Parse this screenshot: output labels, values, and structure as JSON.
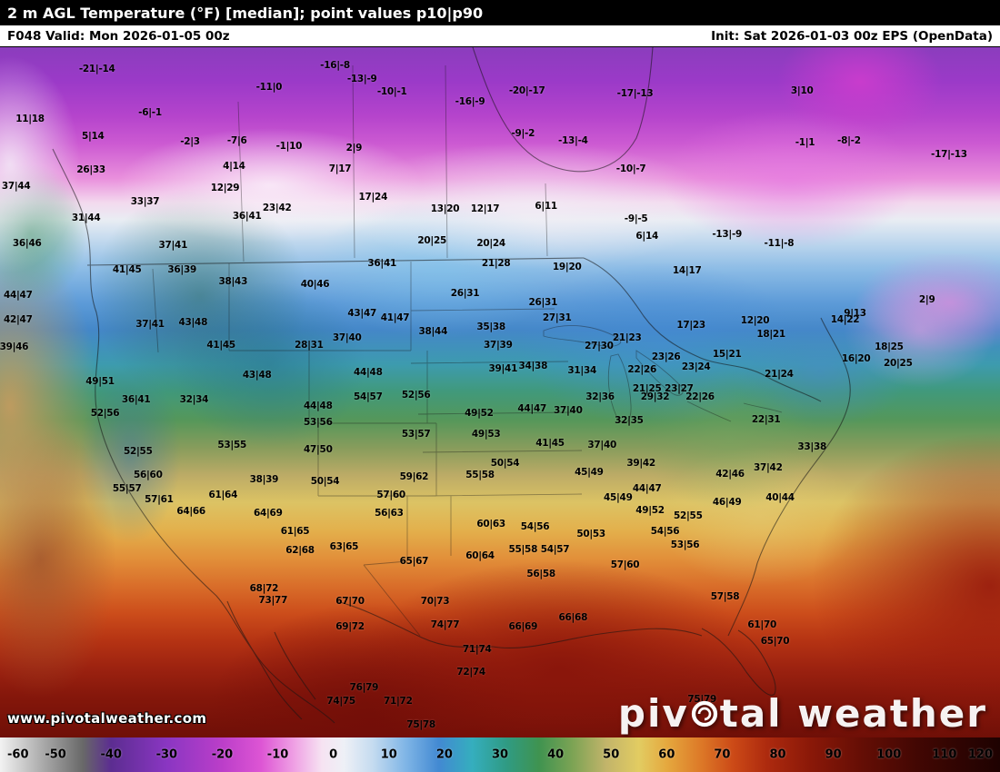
{
  "header": {
    "title": "2 m AGL Temperature (°F) [median]; point values p10|p90",
    "valid_label": "F048 Valid: Mon 2026-01-05 00z",
    "init_label": "Init: Sat 2026-01-03 00z EPS (OpenData)"
  },
  "map": {
    "watermark": "www.pivotalweather.com",
    "logo": {
      "pre": "piv",
      "post": "tal weather"
    },
    "point_values": [
      {
        "v": "-21|-14",
        "x": 9.7,
        "y": 3.2
      },
      {
        "v": "-16|-8",
        "x": 33.5,
        "y": 2.6
      },
      {
        "v": "-13|-9",
        "x": 36.2,
        "y": 4.6
      },
      {
        "v": "-11|0",
        "x": 26.9,
        "y": 5.8
      },
      {
        "v": "-10|-1",
        "x": 39.2,
        "y": 6.4
      },
      {
        "v": "-16|-9",
        "x": 47.0,
        "y": 7.9
      },
      {
        "v": "-20|-17",
        "x": 52.7,
        "y": 6.3
      },
      {
        "v": "-17|-13",
        "x": 63.5,
        "y": 6.7
      },
      {
        "v": "3|10",
        "x": 80.2,
        "y": 6.3
      },
      {
        "v": "11|18",
        "x": 3.0,
        "y": 10.4
      },
      {
        "v": "-6|-1",
        "x": 15.0,
        "y": 9.5
      },
      {
        "v": "5|14",
        "x": 9.3,
        "y": 12.9
      },
      {
        "v": "-2|3",
        "x": 19.0,
        "y": 13.7
      },
      {
        "v": "-7|6",
        "x": 23.7,
        "y": 13.6
      },
      {
        "v": "-1|10",
        "x": 28.9,
        "y": 14.3
      },
      {
        "v": "2|9",
        "x": 35.4,
        "y": 14.6
      },
      {
        "v": "-9|-2",
        "x": 52.3,
        "y": 12.5
      },
      {
        "v": "-13|-4",
        "x": 57.3,
        "y": 13.6
      },
      {
        "v": "-1|1",
        "x": 80.5,
        "y": 13.8
      },
      {
        "v": "-8|-2",
        "x": 84.9,
        "y": 13.6
      },
      {
        "v": "-17|-13",
        "x": 94.9,
        "y": 15.5
      },
      {
        "v": "26|33",
        "x": 9.1,
        "y": 17.8
      },
      {
        "v": "4|14",
        "x": 23.4,
        "y": 17.2
      },
      {
        "v": "7|17",
        "x": 34.0,
        "y": 17.6
      },
      {
        "v": "-10|-7",
        "x": 63.1,
        "y": 17.6
      },
      {
        "v": "37|44",
        "x": 1.6,
        "y": 20.1
      },
      {
        "v": "12|29",
        "x": 22.5,
        "y": 20.4
      },
      {
        "v": "33|37",
        "x": 14.5,
        "y": 22.4
      },
      {
        "v": "17|24",
        "x": 37.3,
        "y": 21.7
      },
      {
        "v": "36|41",
        "x": 24.7,
        "y": 24.5
      },
      {
        "v": "23|42",
        "x": 27.7,
        "y": 23.3
      },
      {
        "v": "13|20",
        "x": 44.5,
        "y": 23.4
      },
      {
        "v": "12|17",
        "x": 48.5,
        "y": 23.4
      },
      {
        "v": "6|11",
        "x": 54.6,
        "y": 23.0
      },
      {
        "v": "-9|-5",
        "x": 63.6,
        "y": 24.9
      },
      {
        "v": "31|44",
        "x": 8.6,
        "y": 24.7
      },
      {
        "v": "6|14",
        "x": 64.7,
        "y": 27.4
      },
      {
        "v": "-13|-9",
        "x": 72.7,
        "y": 27.1
      },
      {
        "v": "-11|-8",
        "x": 77.9,
        "y": 28.4
      },
      {
        "v": "36|46",
        "x": 2.7,
        "y": 28.4
      },
      {
        "v": "37|41",
        "x": 17.3,
        "y": 28.7
      },
      {
        "v": "20|25",
        "x": 43.2,
        "y": 28.0
      },
      {
        "v": "20|24",
        "x": 49.1,
        "y": 28.4
      },
      {
        "v": "21|28",
        "x": 49.6,
        "y": 31.3
      },
      {
        "v": "19|20",
        "x": 56.7,
        "y": 31.8
      },
      {
        "v": "36|41",
        "x": 38.2,
        "y": 31.3
      },
      {
        "v": "41|45",
        "x": 12.7,
        "y": 32.2
      },
      {
        "v": "36|39",
        "x": 18.2,
        "y": 32.2
      },
      {
        "v": "14|17",
        "x": 68.7,
        "y": 32.4
      },
      {
        "v": "38|43",
        "x": 23.3,
        "y": 33.9
      },
      {
        "v": "40|46",
        "x": 31.5,
        "y": 34.3
      },
      {
        "v": "44|47",
        "x": 1.8,
        "y": 35.9
      },
      {
        "v": "26|31",
        "x": 46.5,
        "y": 35.7
      },
      {
        "v": "2|9",
        "x": 92.7,
        "y": 36.6
      },
      {
        "v": "9|13",
        "x": 85.5,
        "y": 38.6
      },
      {
        "v": "26|31",
        "x": 54.3,
        "y": 37.0
      },
      {
        "v": "27|31",
        "x": 55.7,
        "y": 39.2
      },
      {
        "v": "12|20",
        "x": 75.5,
        "y": 39.6
      },
      {
        "v": "14|22",
        "x": 84.5,
        "y": 39.5
      },
      {
        "v": "17|23",
        "x": 69.1,
        "y": 40.3
      },
      {
        "v": "18|25",
        "x": 88.9,
        "y": 43.4
      },
      {
        "v": "18|21",
        "x": 77.1,
        "y": 41.6
      },
      {
        "v": "42|47",
        "x": 1.8,
        "y": 39.5
      },
      {
        "v": "43|48",
        "x": 19.3,
        "y": 39.9
      },
      {
        "v": "37|41",
        "x": 15.0,
        "y": 40.1
      },
      {
        "v": "43|47",
        "x": 36.2,
        "y": 38.6
      },
      {
        "v": "41|47",
        "x": 39.5,
        "y": 39.2
      },
      {
        "v": "35|38",
        "x": 49.1,
        "y": 40.5
      },
      {
        "v": "39|46",
        "x": 1.4,
        "y": 43.4
      },
      {
        "v": "28|31",
        "x": 30.9,
        "y": 43.2
      },
      {
        "v": "37|40",
        "x": 34.7,
        "y": 42.1
      },
      {
        "v": "41|45",
        "x": 22.1,
        "y": 43.2
      },
      {
        "v": "38|44",
        "x": 43.3,
        "y": 41.2
      },
      {
        "v": "37|39",
        "x": 49.8,
        "y": 43.2
      },
      {
        "v": "27|30",
        "x": 59.9,
        "y": 43.3
      },
      {
        "v": "23|26",
        "x": 66.6,
        "y": 44.9
      },
      {
        "v": "21|23",
        "x": 62.7,
        "y": 42.1
      },
      {
        "v": "39|41",
        "x": 50.3,
        "y": 46.6
      },
      {
        "v": "34|38",
        "x": 53.3,
        "y": 46.2
      },
      {
        "v": "31|34",
        "x": 58.2,
        "y": 46.8
      },
      {
        "v": "22|26",
        "x": 64.2,
        "y": 46.7
      },
      {
        "v": "23|24",
        "x": 69.6,
        "y": 46.3
      },
      {
        "v": "20|25",
        "x": 89.8,
        "y": 45.8
      },
      {
        "v": "16|20",
        "x": 85.6,
        "y": 45.1
      },
      {
        "v": "15|21",
        "x": 72.7,
        "y": 44.5
      },
      {
        "v": "44|48",
        "x": 36.8,
        "y": 47.1
      },
      {
        "v": "43|48",
        "x": 25.7,
        "y": 47.5
      },
      {
        "v": "49|51",
        "x": 10.0,
        "y": 48.4
      },
      {
        "v": "21|25",
        "x": 64.7,
        "y": 49.5
      },
      {
        "v": "23|27",
        "x": 67.9,
        "y": 49.5
      },
      {
        "v": "21|24",
        "x": 77.9,
        "y": 47.4
      },
      {
        "v": "36|41",
        "x": 13.6,
        "y": 51.1
      },
      {
        "v": "32|34",
        "x": 19.4,
        "y": 51.1
      },
      {
        "v": "44|48",
        "x": 31.8,
        "y": 52.0
      },
      {
        "v": "54|57",
        "x": 36.8,
        "y": 50.7
      },
      {
        "v": "52|56",
        "x": 41.6,
        "y": 50.4
      },
      {
        "v": "49|52",
        "x": 47.9,
        "y": 53.0
      },
      {
        "v": "44|47",
        "x": 53.2,
        "y": 52.4
      },
      {
        "v": "37|40",
        "x": 56.8,
        "y": 52.6
      },
      {
        "v": "32|36",
        "x": 60.0,
        "y": 50.7
      },
      {
        "v": "29|32",
        "x": 65.5,
        "y": 50.7
      },
      {
        "v": "22|26",
        "x": 70.0,
        "y": 50.7
      },
      {
        "v": "52|56",
        "x": 10.5,
        "y": 53.0
      },
      {
        "v": "53|56",
        "x": 31.8,
        "y": 54.3
      },
      {
        "v": "53|57",
        "x": 41.6,
        "y": 56.1
      },
      {
        "v": "49|53",
        "x": 48.6,
        "y": 56.1
      },
      {
        "v": "32|35",
        "x": 62.9,
        "y": 54.1
      },
      {
        "v": "22|31",
        "x": 76.6,
        "y": 53.9
      },
      {
        "v": "53|55",
        "x": 23.2,
        "y": 57.6
      },
      {
        "v": "47|50",
        "x": 31.8,
        "y": 58.3
      },
      {
        "v": "41|45",
        "x": 55.0,
        "y": 57.4
      },
      {
        "v": "37|40",
        "x": 60.2,
        "y": 57.6
      },
      {
        "v": "33|38",
        "x": 81.2,
        "y": 57.9
      },
      {
        "v": "52|55",
        "x": 13.8,
        "y": 58.6
      },
      {
        "v": "39|42",
        "x": 64.1,
        "y": 60.3
      },
      {
        "v": "42|46",
        "x": 73.0,
        "y": 61.8
      },
      {
        "v": "37|42",
        "x": 76.8,
        "y": 60.9
      },
      {
        "v": "50|54",
        "x": 50.5,
        "y": 60.3
      },
      {
        "v": "45|49",
        "x": 58.9,
        "y": 61.6
      },
      {
        "v": "56|60",
        "x": 14.8,
        "y": 62.0
      },
      {
        "v": "38|39",
        "x": 26.4,
        "y": 62.6
      },
      {
        "v": "50|54",
        "x": 32.5,
        "y": 62.9
      },
      {
        "v": "55|58",
        "x": 48.0,
        "y": 62.0
      },
      {
        "v": "44|47",
        "x": 64.7,
        "y": 63.9
      },
      {
        "v": "40|44",
        "x": 78.0,
        "y": 65.3
      },
      {
        "v": "46|49",
        "x": 72.7,
        "y": 65.9
      },
      {
        "v": "49|52",
        "x": 65.0,
        "y": 67.1
      },
      {
        "v": "55|57",
        "x": 12.7,
        "y": 63.9
      },
      {
        "v": "57|61",
        "x": 15.9,
        "y": 65.5
      },
      {
        "v": "61|64",
        "x": 22.3,
        "y": 64.9
      },
      {
        "v": "64|66",
        "x": 19.1,
        "y": 67.2
      },
      {
        "v": "64|69",
        "x": 26.8,
        "y": 67.5
      },
      {
        "v": "57|60",
        "x": 39.1,
        "y": 64.9
      },
      {
        "v": "59|62",
        "x": 41.4,
        "y": 62.2
      },
      {
        "v": "45|49",
        "x": 61.8,
        "y": 65.3
      },
      {
        "v": "52|55",
        "x": 68.8,
        "y": 67.9
      },
      {
        "v": "56|63",
        "x": 38.9,
        "y": 67.5
      },
      {
        "v": "61|65",
        "x": 29.5,
        "y": 70.1
      },
      {
        "v": "60|63",
        "x": 49.1,
        "y": 69.1
      },
      {
        "v": "54|56",
        "x": 53.5,
        "y": 69.5
      },
      {
        "v": "50|53",
        "x": 59.1,
        "y": 70.5
      },
      {
        "v": "54|56",
        "x": 66.5,
        "y": 70.1
      },
      {
        "v": "53|56",
        "x": 68.5,
        "y": 72.1
      },
      {
        "v": "62|68",
        "x": 30.0,
        "y": 72.9
      },
      {
        "v": "63|65",
        "x": 34.4,
        "y": 72.4
      },
      {
        "v": "65|67",
        "x": 41.4,
        "y": 74.5
      },
      {
        "v": "60|64",
        "x": 48.0,
        "y": 73.7
      },
      {
        "v": "55|58",
        "x": 52.3,
        "y": 72.8
      },
      {
        "v": "54|57",
        "x": 55.5,
        "y": 72.8
      },
      {
        "v": "57|60",
        "x": 62.5,
        "y": 75.0
      },
      {
        "v": "57|58",
        "x": 72.5,
        "y": 79.6
      },
      {
        "v": "56|58",
        "x": 54.1,
        "y": 76.3
      },
      {
        "v": "68|72",
        "x": 26.4,
        "y": 78.4
      },
      {
        "v": "73|77",
        "x": 27.3,
        "y": 80.1
      },
      {
        "v": "67|70",
        "x": 35.0,
        "y": 80.3
      },
      {
        "v": "70|73",
        "x": 43.5,
        "y": 80.3
      },
      {
        "v": "66|69",
        "x": 52.3,
        "y": 83.9
      },
      {
        "v": "66|68",
        "x": 57.3,
        "y": 82.6
      },
      {
        "v": "69|72",
        "x": 35.0,
        "y": 83.9
      },
      {
        "v": "74|77",
        "x": 44.5,
        "y": 83.7
      },
      {
        "v": "71|74",
        "x": 47.7,
        "y": 87.2
      },
      {
        "v": "72|74",
        "x": 47.1,
        "y": 90.5
      },
      {
        "v": "61|70",
        "x": 76.2,
        "y": 83.7
      },
      {
        "v": "65|70",
        "x": 77.5,
        "y": 86.1
      },
      {
        "v": "76|79",
        "x": 36.4,
        "y": 92.8
      },
      {
        "v": "74|75",
        "x": 34.1,
        "y": 94.7
      },
      {
        "v": "71|72",
        "x": 39.8,
        "y": 94.7
      },
      {
        "v": "75|78",
        "x": 42.1,
        "y": 98.2
      },
      {
        "v": "75|79",
        "x": 70.2,
        "y": 94.5
      }
    ]
  },
  "colorbar": {
    "min": -60,
    "max": 120,
    "ticks": [
      -60,
      -50,
      -40,
      -30,
      -20,
      -10,
      0,
      10,
      20,
      30,
      40,
      50,
      60,
      70,
      80,
      90,
      100,
      110,
      120
    ],
    "stops": [
      {
        "t": -60,
        "c": "#f2f2f2"
      },
      {
        "t": -52,
        "c": "#a8a8a8"
      },
      {
        "t": -45,
        "c": "#686868"
      },
      {
        "t": -40,
        "c": "#5c2d91"
      },
      {
        "t": -30,
        "c": "#8a36c2"
      },
      {
        "t": -20,
        "c": "#bb3ec9"
      },
      {
        "t": -13,
        "c": "#dd55d4"
      },
      {
        "t": -7,
        "c": "#efa0e4"
      },
      {
        "t": -2,
        "c": "#f6e3f2"
      },
      {
        "t": 2,
        "c": "#eef0f6"
      },
      {
        "t": 7,
        "c": "#c6dcf0"
      },
      {
        "t": 13,
        "c": "#7fb5e6"
      },
      {
        "t": 19,
        "c": "#4289d2"
      },
      {
        "t": 25,
        "c": "#35aebe"
      },
      {
        "t": 31,
        "c": "#2f9b84"
      },
      {
        "t": 37,
        "c": "#3f9350"
      },
      {
        "t": 43,
        "c": "#7ba354"
      },
      {
        "t": 49,
        "c": "#c2b46a"
      },
      {
        "t": 55,
        "c": "#e2cc62"
      },
      {
        "t": 60,
        "c": "#e5a83e"
      },
      {
        "t": 66,
        "c": "#dd7a28"
      },
      {
        "t": 72,
        "c": "#cc4a17"
      },
      {
        "t": 78,
        "c": "#ad2a0e"
      },
      {
        "t": 86,
        "c": "#8a1808"
      },
      {
        "t": 95,
        "c": "#650e05"
      },
      {
        "t": 105,
        "c": "#420703"
      },
      {
        "t": 120,
        "c": "#1e0201"
      }
    ]
  }
}
